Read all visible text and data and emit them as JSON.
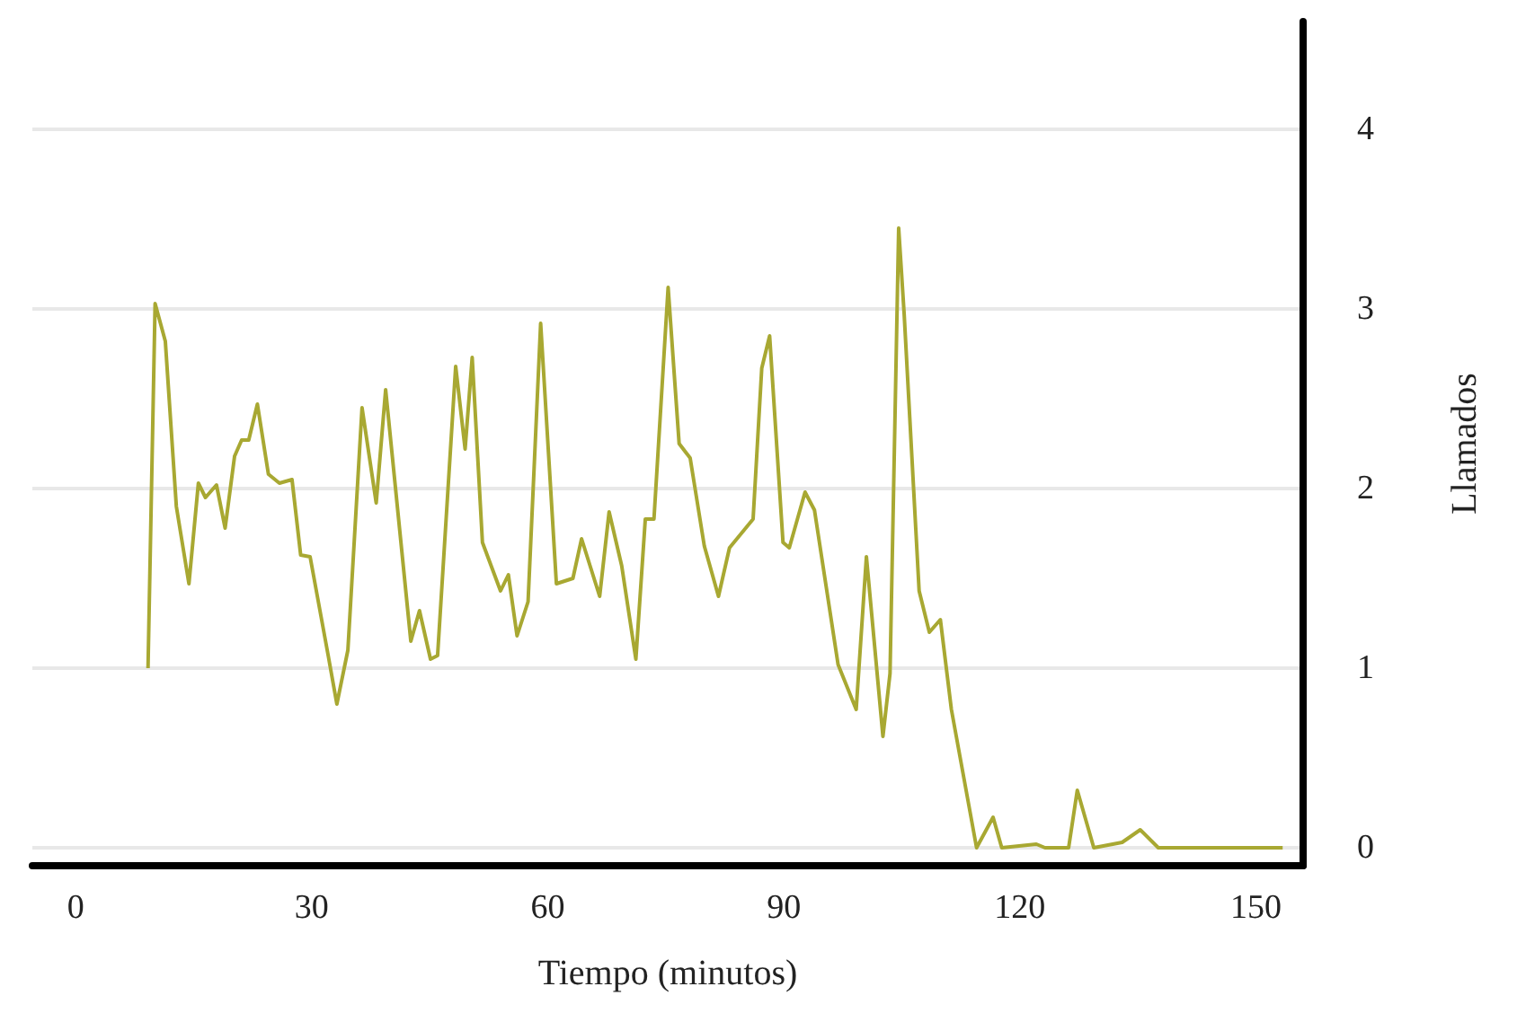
{
  "chart_data": {
    "type": "line",
    "xlabel": "Tiempo (minutos)",
    "ylabel": "Llamados",
    "x": [
      9.2,
      10.1,
      11.4,
      12.8,
      14.4,
      15.6,
      16.5,
      17.9,
      19.0,
      20.2,
      21.1,
      22.0,
      23.1,
      24.5,
      25.9,
      27.5,
      28.6,
      29.8,
      32.1,
      33.2,
      34.6,
      36.4,
      38.2,
      39.4,
      42.6,
      43.7,
      45.1,
      46.0,
      48.3,
      49.5,
      50.4,
      51.7,
      54.0,
      55.0,
      56.1,
      57.5,
      59.1,
      61.1,
      63.2,
      64.3,
      66.6,
      67.8,
      69.4,
      71.2,
      72.4,
      73.5,
      75.3,
      76.7,
      78.1,
      79.9,
      81.7,
      83.1,
      86.1,
      87.2,
      88.2,
      89.9,
      90.7,
      92.7,
      93.9,
      96.9,
      99.2,
      100.5,
      102.6,
      103.5,
      104.6,
      105.3,
      107.2,
      108.5,
      109.9,
      111.3,
      114.5,
      116.6,
      117.7,
      122.1,
      123.2,
      126.2,
      127.3,
      129.4,
      133.0,
      135.3,
      137.6,
      153.4
    ],
    "series": [
      {
        "color": "#a8a832",
        "values": [
          1.0,
          3.03,
          2.82,
          1.9,
          1.47,
          2.03,
          1.95,
          2.02,
          1.78,
          2.18,
          2.27,
          2.27,
          2.47,
          2.08,
          2.03,
          2.05,
          1.63,
          1.62,
          1.07,
          0.8,
          1.1,
          2.45,
          1.92,
          2.55,
          1.15,
          1.32,
          1.05,
          1.07,
          2.68,
          2.22,
          2.73,
          1.7,
          1.43,
          1.52,
          1.18,
          1.37,
          2.92,
          1.47,
          1.5,
          1.72,
          1.4,
          1.87,
          1.57,
          1.05,
          1.83,
          1.83,
          3.12,
          2.25,
          2.17,
          1.68,
          1.4,
          1.67,
          1.83,
          2.67,
          2.85,
          1.7,
          1.67,
          1.98,
          1.88,
          1.02,
          0.77,
          1.62,
          0.62,
          0.97,
          3.45,
          2.97,
          1.43,
          1.2,
          1.27,
          0.77,
          0,
          0.17,
          0,
          0.02,
          0,
          0,
          0.32,
          0,
          0.03,
          0.1,
          0,
          0
        ]
      }
    ],
    "xlim": [
      -5.5,
      156
    ],
    "xticks": [
      0,
      30,
      60,
      90,
      120,
      150
    ],
    "ylim": [
      -0.1,
      4.6
    ],
    "yticks": [
      0,
      1,
      2,
      3,
      4
    ],
    "grid": "y",
    "marker": "none",
    "line_style": "solid"
  }
}
